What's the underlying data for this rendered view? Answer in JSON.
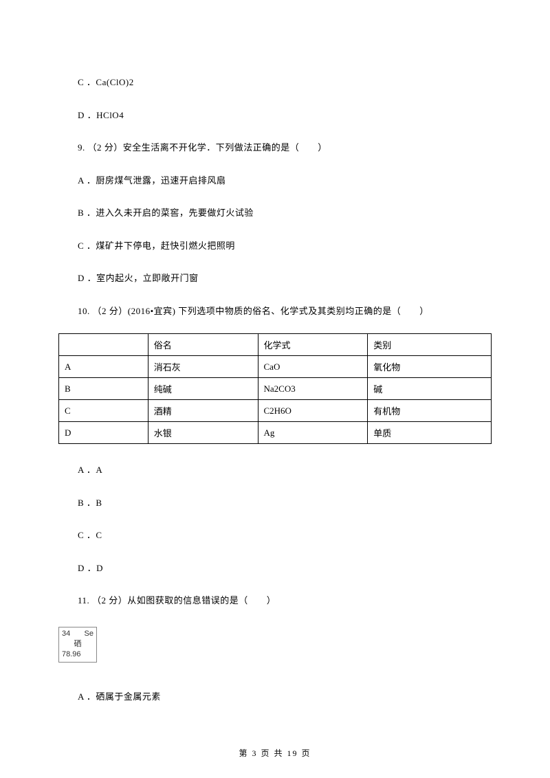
{
  "options_top": [
    "C ．Ca(ClO)2",
    "D ．HClO4"
  ],
  "question9": {
    "stem": "9. （2 分）安全生活离不开化学．下列做法正确的是（　　）",
    "options": [
      "A ．厨房煤气泄露，迅速开启排风扇",
      "B ．进入久未开启的菜窖，先要做灯火试验",
      "C ．煤矿井下停电，赶快引燃火把照明",
      "D ．室内起火，立即敞开门窗"
    ]
  },
  "question10": {
    "stem": "10. （2 分）(2016•宜宾) 下列选项中物质的俗名、化学式及其类别均正确的是（　　）",
    "headers": [
      "",
      "俗名",
      "化学式",
      "类别"
    ],
    "rows": [
      [
        "A",
        "消石灰",
        "CaO",
        "氧化物"
      ],
      [
        "B",
        "纯碱",
        "Na2CO3",
        "碱"
      ],
      [
        "C",
        "酒精",
        "C2H6O",
        "有机物"
      ],
      [
        "D",
        "水银",
        "Ag",
        "单质"
      ]
    ],
    "options": [
      "A ．A",
      "B ．B",
      "C ．C",
      "D ．D"
    ]
  },
  "question11": {
    "stem": "11. （2 分）从如图获取的信息错误的是（　　）",
    "element": {
      "number": "34",
      "symbol": "Se",
      "name": "硒",
      "mass": "78.96"
    },
    "option_a": "A ．硒属于金属元素"
  },
  "footer": "第 3 页 共 19 页"
}
